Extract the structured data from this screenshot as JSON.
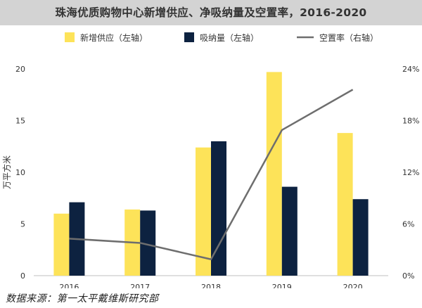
{
  "title": "珠海优质购物中心新增供应、净吸纳量及空置率，2016-2020",
  "source": "数据来源：第一太平戴维斯研究部",
  "colors": {
    "supply": "#fde359",
    "absorption": "#0d2240",
    "vacancy": "#6e6e6e",
    "title_bg": "#d3d3d3"
  },
  "chart_data": {
    "type": "bar",
    "categories": [
      "2016",
      "2017",
      "2018",
      "2019",
      "2020"
    ],
    "series": [
      {
        "name": "新增供应（左轴）",
        "type": "bar",
        "axis": "left",
        "values": [
          6.0,
          6.4,
          12.4,
          19.7,
          13.8
        ]
      },
      {
        "name": "吸纳量（左轴）",
        "type": "bar",
        "axis": "left",
        "values": [
          7.1,
          6.3,
          13.0,
          8.6,
          7.4
        ]
      },
      {
        "name": "空置率（右轴）",
        "type": "line",
        "axis": "right",
        "values": [
          4.3,
          3.8,
          1.9,
          16.9,
          21.6
        ]
      }
    ],
    "ylabel": "万平方米",
    "ylim": [
      0,
      20
    ],
    "yticks": [
      "0",
      "5",
      "10",
      "15",
      "20"
    ],
    "y2lim": [
      0,
      24
    ],
    "y2ticks": [
      "0%",
      "6%",
      "12%",
      "18%",
      "24%"
    ],
    "legend_position": "top",
    "grid": false
  }
}
